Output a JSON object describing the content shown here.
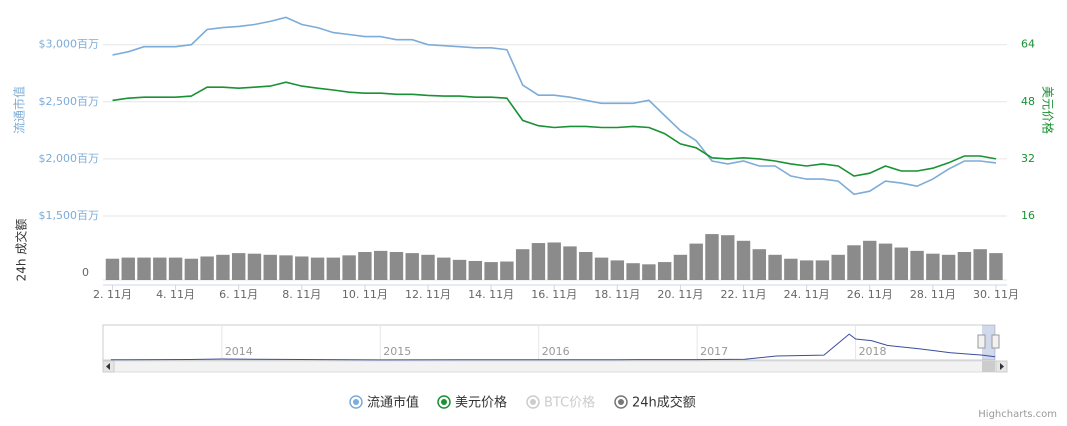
{
  "chart_data": {
    "type": "line",
    "x": [
      2,
      2.5,
      3,
      3.5,
      4,
      4.5,
      5,
      5.5,
      6,
      6.5,
      7,
      7.5,
      8,
      8.5,
      9,
      9.5,
      10,
      10.5,
      11,
      11.5,
      12,
      12.5,
      13,
      13.5,
      14,
      14.5,
      15,
      15.5,
      16,
      16.5,
      17,
      17.5,
      18,
      18.5,
      19,
      19.5,
      20,
      20.5,
      21,
      21.5,
      22,
      22.5,
      23,
      23.5,
      24,
      24.5,
      25,
      25.5,
      26,
      26.5,
      27,
      27.5,
      28,
      28.5,
      29,
      29.5,
      30
    ],
    "xlim": [
      1.7,
      30.35
    ],
    "xticks": [
      {
        "value": 2,
        "label": "2. 11月"
      },
      {
        "value": 4,
        "label": "4. 11月"
      },
      {
        "value": 6,
        "label": "6. 11月"
      },
      {
        "value": 8,
        "label": "8. 11月"
      },
      {
        "value": 10,
        "label": "10. 11月"
      },
      {
        "value": 12,
        "label": "12. 11月"
      },
      {
        "value": 14,
        "label": "14. 11月"
      },
      {
        "value": 16,
        "label": "16. 11月"
      },
      {
        "value": 18,
        "label": "18. 11月"
      },
      {
        "value": 20,
        "label": "20. 11月"
      },
      {
        "value": 22,
        "label": "22. 11月"
      },
      {
        "value": 24,
        "label": "24. 11月"
      },
      {
        "value": 26,
        "label": "26. 11月"
      },
      {
        "value": 28,
        "label": "28. 11月"
      },
      {
        "value": 30,
        "label": "30. 11月"
      }
    ],
    "ylabel": "流通市值",
    "ylim": [
      1500,
      3260
    ],
    "yticks": [
      {
        "value": 1500,
        "label": "$1,500百万"
      },
      {
        "value": 2000,
        "label": "$2,000百万"
      },
      {
        "value": 2500,
        "label": "$2,500百万"
      },
      {
        "value": 3000,
        "label": "$3,000百万"
      }
    ],
    "y2label": "美元价格",
    "y2lim": [
      16,
      72.32
    ],
    "y2ticks": [
      16,
      32,
      48,
      64
    ],
    "y3label": "24h 成交额",
    "y3lim": [
      0,
      100
    ],
    "y3ticks": [
      0
    ],
    "grid": true,
    "series": [
      {
        "name": "流通市值",
        "color": "#7cacd8",
        "axis": "y",
        "values": [
          2910,
          2938,
          2982,
          2982,
          2982,
          3000,
          3133,
          3150,
          3160,
          3177,
          3204,
          3239,
          3177,
          3150,
          3106,
          3089,
          3071,
          3071,
          3044,
          3044,
          3000,
          2991,
          2982,
          2973,
          2973,
          2956,
          2646,
          2558,
          2558,
          2540,
          2513,
          2487,
          2487,
          2487,
          2513,
          2380,
          2248,
          2159,
          1982,
          1956,
          1982,
          1938,
          1938,
          1850,
          1823,
          1823,
          1806,
          1690,
          1717,
          1806,
          1788,
          1761,
          1823,
          1911,
          1982,
          1982,
          1965
        ]
      },
      {
        "name": "美元价格",
        "color": "#1a9134",
        "axis": "y2",
        "values": [
          48.4,
          49,
          49.3,
          49.3,
          49.3,
          49.6,
          52.1,
          52.1,
          51.8,
          52.1,
          52.4,
          53.5,
          52.4,
          51.8,
          51.3,
          50.7,
          50.4,
          50.4,
          50.1,
          50.1,
          49.8,
          49.6,
          49.6,
          49.3,
          49.3,
          49,
          42.8,
          41.3,
          40.8,
          41.1,
          41.1,
          40.8,
          40.8,
          41.1,
          40.8,
          39.1,
          36.2,
          35.1,
          32.3,
          32,
          32.3,
          32,
          31.4,
          30.6,
          30,
          30.6,
          30,
          27.2,
          28,
          30,
          28.6,
          28.6,
          29.4,
          30.9,
          32.8,
          32.8,
          32
        ]
      },
      {
        "name": "24h成交额",
        "color": "#777777",
        "axis": "y3",
        "type": "bar",
        "values": [
          38,
          40,
          40,
          40,
          40,
          38,
          42,
          45,
          48,
          47,
          45,
          44,
          42,
          40,
          40,
          44,
          50,
          52,
          50,
          48,
          45,
          40,
          36,
          34,
          32,
          33,
          55,
          66,
          67,
          60,
          50,
          40,
          35,
          30,
          28,
          32,
          45,
          65,
          82,
          80,
          70,
          55,
          45,
          38,
          35,
          35,
          45,
          62,
          70,
          65,
          58,
          52,
          47,
          45,
          50,
          55,
          48
        ]
      }
    ],
    "hidden_series": [
      {
        "name": "BTC价格",
        "color": "#cccccc"
      }
    ],
    "navigator": {
      "x": [
        2013.3,
        2013.8,
        2014.0,
        2014.5,
        2015.0,
        2015.5,
        2016.0,
        2016.5,
        2017.0,
        2017.3,
        2017.5,
        2017.8,
        2017.96,
        2018.0,
        2018.1,
        2018.2,
        2018.4,
        2018.6,
        2018.8,
        2018.88
      ],
      "values": [
        100,
        300,
        600,
        300,
        80,
        150,
        150,
        200,
        220,
        500,
        2500,
        3000,
        16000,
        13000,
        12000,
        9000,
        7000,
        4500,
        3000,
        2000
      ],
      "xlim": [
        2013.25,
        2018.88
      ],
      "ylim": [
        0,
        21000
      ],
      "xticks": [
        2014,
        2015,
        2016,
        2017,
        2018
      ],
      "color": "#3a4f9a"
    },
    "credits": "Highcharts.com"
  }
}
